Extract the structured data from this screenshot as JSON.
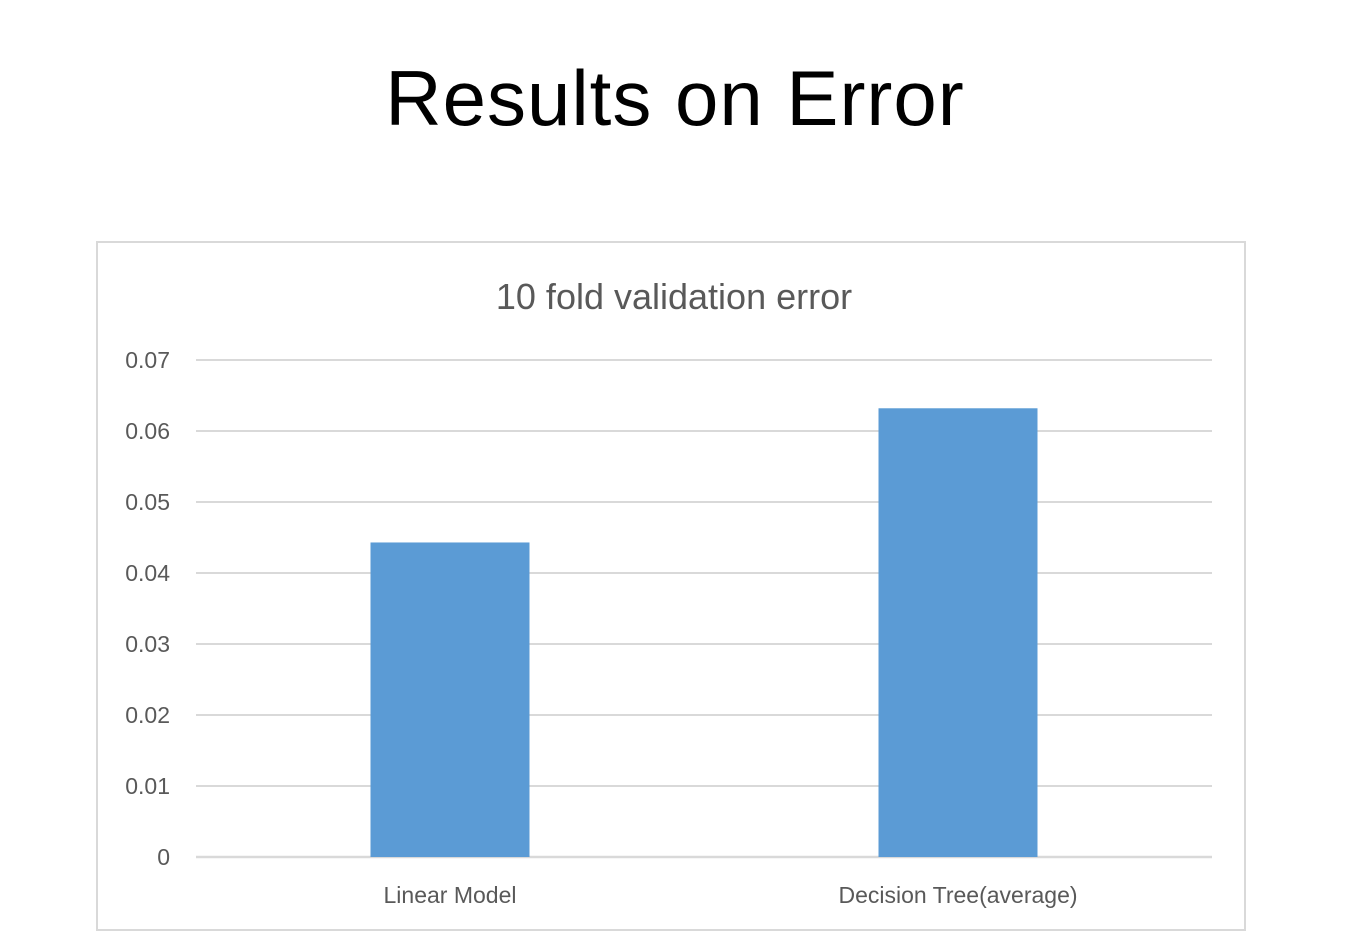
{
  "slide": {
    "title": "Results on Error"
  },
  "chart_data": {
    "type": "bar",
    "title": "10 fold validation error",
    "categories": [
      "Linear Model",
      "Decision Tree(average)"
    ],
    "values": [
      0.0443,
      0.0632
    ],
    "ylim": [
      0,
      0.07
    ],
    "yticks": [
      "0",
      "0.01",
      "0.02",
      "0.03",
      "0.04",
      "0.05",
      "0.06",
      "0.07"
    ],
    "xlabel": "",
    "ylabel": "",
    "grid": true,
    "legend": "none",
    "bar_color": "#5b9bd5",
    "grid_color": "#d9d9d9"
  }
}
